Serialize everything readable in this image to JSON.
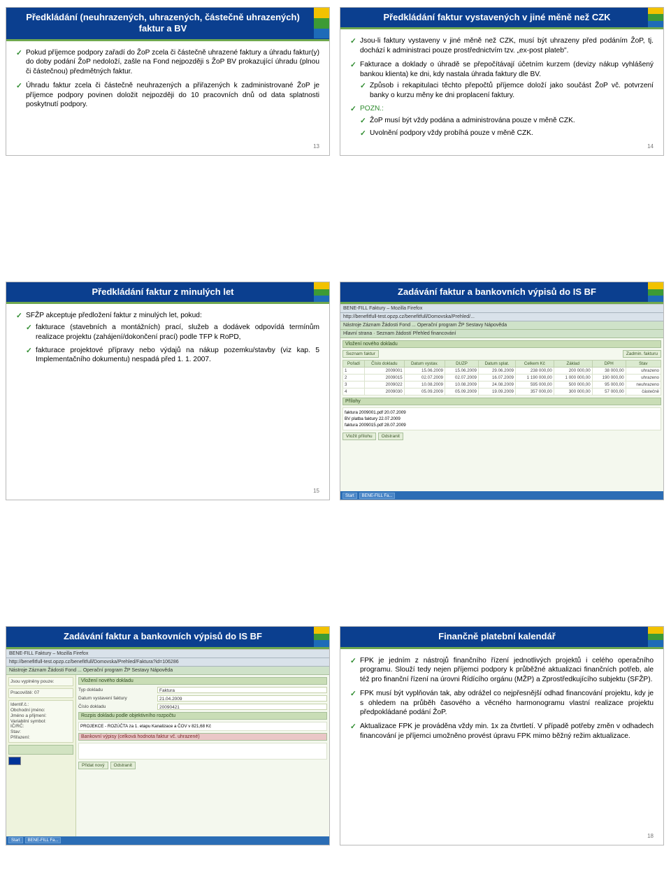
{
  "colors": {
    "header_bg": "#0b3f8f",
    "header_border": "#6fa84f",
    "check": "#2e8b2e",
    "text": "#000000",
    "pagenum": "#777777",
    "app_bg": "#e9efe4"
  },
  "slides": {
    "s1": {
      "title": "Předkládání (neuhrazených, uhrazených, částečně uhrazených) faktur a BV",
      "b1": "Pokud příjemce podpory zařadí do ŽoP zcela či částečně uhrazené faktury a úhradu faktur(y) do doby podání ŽoP nedoloží, zašle na Fond nejpozději s ŽoP BV prokazující úhradu (plnou či částečnou) předmětných faktur.",
      "b2": "Úhradu faktur zcela či částečně neuhrazených a přiřazených k zadministrované ŽoP je příjemce podpory povinen doložit nejpozději do 10 pracovních dnů od data splatnosti poskytnutí podpory.",
      "num": "13"
    },
    "s2": {
      "title": "Předkládání faktur vystavených v jiné měně než CZK",
      "b1": "Jsou-li faktury vystaveny v jiné měně než CZK, musí být uhrazeny před podáním ŽoP, tj. dochází k administraci pouze prostřednictvím tzv. „ex-post plateb\".",
      "b2": "Fakturace a doklady o úhradě se přepočítávají účetním kurzem (devizy nákup vyhlášený bankou klienta) ke dni, kdy nastala úhrada faktury dle BV.",
      "b2s1": "Způsob i rekapitulaci těchto přepočtů příjemce doloží jako součást ŽoP vč. potvrzení banky o kurzu měny ke dni proplacení faktury.",
      "pozn_label": "POZN.:",
      "b3s1": "ŽoP musí být vždy podána a administrována pouze v měně CZK.",
      "b3s2": "Uvolnění podpory vždy probíhá pouze v měně CZK.",
      "num": "14"
    },
    "s3": {
      "title": "Předkládání faktur z minulých let",
      "b1": "SFŽP akceptuje předložení faktur z minulých let, pokud:",
      "b1s1": "fakturace (stavebních a montážních) prací, služeb a dodávek odpovídá termínům realizace projektu (zahájení/dokončení prací) podle TFP k RoPD,",
      "b1s2": "fakturace projektové přípravy nebo výdajů na nákup pozemku/stavby (viz kap. 5 Implementačního dokumentu) nespadá před 1. 1. 2007.",
      "num": "15"
    },
    "s4": {
      "title": "Zadávání faktur a bankovních výpisů do IS BF",
      "app": {
        "window_title": "BENE-FILL Faktury – Mozilla Firefox",
        "url": "http://benefitfull-test.opzp.cz/benefitfull/Domovska/Prehled/...",
        "tabs": "Nástroje Záznam Žádosti Fond ... Operační program ŽP  Sestavy  Nápověda",
        "breadcrumb": "Hlavní strana · Seznam žádostí  Přehled financování",
        "panel_sez": "Seznam faktur",
        "panel_vlozit": "Vložení nového dokladu",
        "btn_submit": "Zadmin. fakturu",
        "table": {
          "cols": [
            "Pořadí",
            "Číslo dokladu",
            "Datum vystav.",
            "DUZP",
            "Datum splat.",
            "Celkem Kč",
            "Základ",
            "DPH",
            "Stav"
          ],
          "rows": [
            [
              "1",
              "2009001",
              "15.06.2009",
              "15.06.2009",
              "29.06.2009",
              "238 000,00",
              "200 000,00",
              "38 000,00",
              "uhrazeno"
            ],
            [
              "2",
              "2009015",
              "02.07.2009",
              "02.07.2009",
              "16.07.2009",
              "1 190 000,00",
              "1 000 000,00",
              "190 000,00",
              "uhrazeno"
            ],
            [
              "3",
              "2009022",
              "10.08.2009",
              "10.08.2009",
              "24.08.2009",
              "595 000,00",
              "500 000,00",
              "95 000,00",
              "neuhrazeno"
            ],
            [
              "4",
              "2009030",
              "05.09.2009",
              "05.09.2009",
              "19.09.2009",
              "357 000,00",
              "300 000,00",
              "57 000,00",
              "částečně"
            ]
          ]
        },
        "panel_prilohy": "Přílohy",
        "pr_rows": [
          "faktura 2009001.pdf  20.07.2009",
          "BV platba faktury  22.07.2009",
          "faktura 2009015.pdf  28.07.2009"
        ],
        "btns": [
          "Vložit přílohu",
          "Odstranit"
        ],
        "taskbar": [
          "Start",
          "BENE-FILL Fa..."
        ]
      }
    },
    "s5": {
      "title": "Zadávání faktur a bankovních výpisů do IS BF",
      "app": {
        "window_title": "BENE-FILL Faktury – Mozilla Firefox",
        "url": "http://benefitfull-test.opzp.cz/benefitfull/Domovska/Prehled/Faktura?id=106286",
        "tabs": "Nástroje  Záznam  Žádosti  Fond  ...  Operační program ŽP  Sestavy  Nápověda",
        "side_title": "Jsou vyplněny pouze:",
        "side_proj": "Pracoviště: 07",
        "side_info": "Identif.č.:\nObchodní jméno:\nJméno a přijmení:\nVariabilní symbol:\nIČ/RČ:\nStav:\nPřiřazení:",
        "panel_vlozit": "Vložení nového dokladu",
        "typ_label": "Typ dokladu",
        "typ_val": "Faktura",
        "dat_label": "Datum vystavení faktury",
        "dat_val": "21.04.2009",
        "cis_label": "Číslo dokladu",
        "cis_val": "20090421",
        "rozpis_head": "Rozpis dokladu podle objektivního rozpočtu",
        "rozpis_row": "PROJEKCE - ROZÚČTA za 1. etapu Kanalizace a ČOV v 821,68 Kč",
        "bv_head": "Bankovní výpisy (celková hodnota faktur vč. uhrazené)",
        "btns": [
          "Přidat nový",
          "Odstranit"
        ],
        "taskbar": [
          "Start",
          "BENE-FILL Fa..."
        ]
      }
    },
    "s6": {
      "title": "Finančně platební kalendář",
      "b1": "FPK je jedním z nástrojů finančního řízení jednotlivých projektů i celého operačního programu. Slouží tedy nejen příjemci podpory k průběžné aktualizaci finančních potřeb, ale též pro finanční řízení na úrovni Řídícího orgánu (MŽP) a Zprostředkujícího subjektu (SFŽP).",
      "b2": "FPK musí být vyplňován tak, aby odrážel co nejpřesnější odhad financování projektu, kdy je s ohledem na průběh časového a věcného harmonogramu vlastní realizace projektu předpokládané podání ŽoP.",
      "b3": "Aktualizace FPK je prováděna vždy min. 1x za čtvrtletí. V případě potřeby změn v odhadech financování je příjemci umožněno provést úpravu FPK mimo běžný režim aktualizace.",
      "num": "18"
    }
  }
}
